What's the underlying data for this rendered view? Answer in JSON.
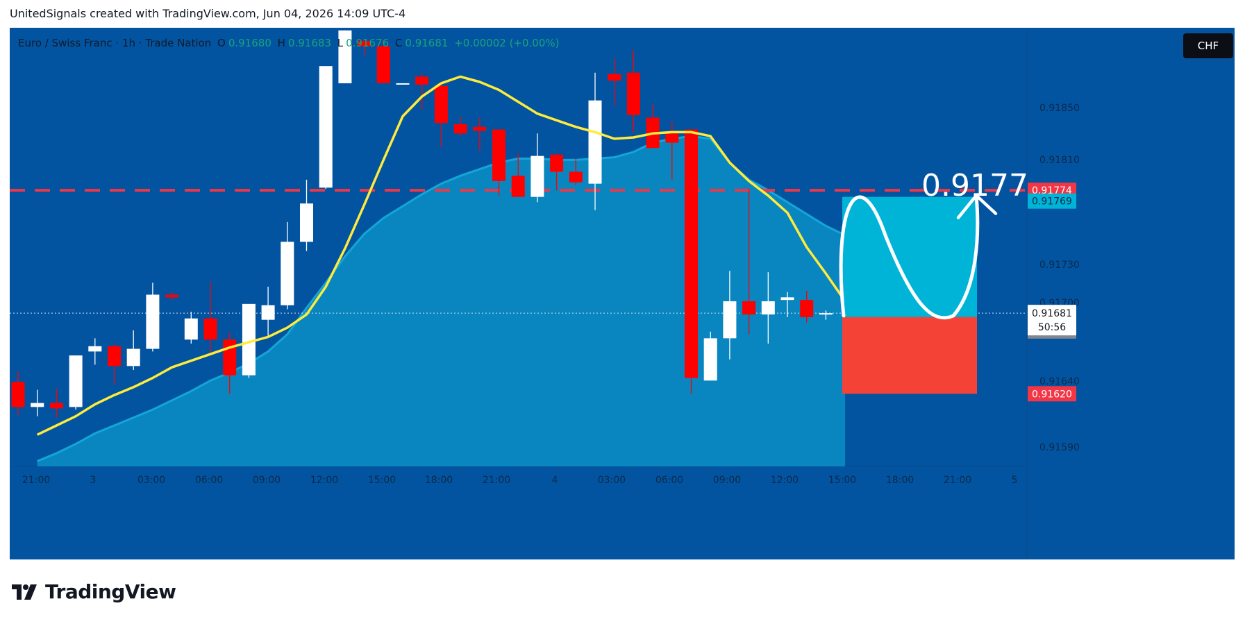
{
  "caption": "UnitedSignals created with TradingView.com, Jun 04, 2026 14:09 UTC-4",
  "symbol": {
    "name": "Euro / Swiss Franc · 1h · Trade Nation",
    "o_label": "O",
    "o_value": "0.91680",
    "h_label": "H",
    "h_value": "0.91683",
    "l_label": "L",
    "l_value": "0.91676",
    "c_label": "C",
    "c_value": "0.91681",
    "change": "+0.00002 (+0.00%)"
  },
  "currency": "CHF",
  "annotation_price": "0.9177",
  "countdown": "50:56",
  "footer_brand": "TradingView",
  "colors": {
    "background": "#0354a0",
    "bull": "#ffffff",
    "bear": "#ff0000",
    "ma_fast": "#ffeb3b",
    "ma_slow_fill": "#0a8fc4",
    "resistance": "#f23645",
    "target_zone": "#00b4d8",
    "stop_zone": "#f44336"
  },
  "chart_data": {
    "type": "candlestick",
    "ylim": [
      0.91565,
      0.91897
    ],
    "y_ticks": [
      "0.91850",
      "0.91810",
      "0.91730",
      "0.91700",
      "0.91640",
      "0.91590"
    ],
    "x_ticks": [
      "21:00",
      "3",
      "03:00",
      "06:00",
      "09:00",
      "12:00",
      "15:00",
      "18:00",
      "21:00",
      "4",
      "03:00",
      "06:00",
      "09:00",
      "12:00",
      "15:00",
      "18:00",
      "21:00",
      "5"
    ],
    "candles": [
      {
        "o": 0.91629,
        "h": 0.91637,
        "l": 0.91604,
        "c": 0.9161
      },
      {
        "o": 0.9161,
        "h": 0.91623,
        "l": 0.91603,
        "c": 0.91613
      },
      {
        "o": 0.91613,
        "h": 0.91624,
        "l": 0.91602,
        "c": 0.91609
      },
      {
        "o": 0.9161,
        "h": 0.91649,
        "l": 0.91608,
        "c": 0.91649
      },
      {
        "o": 0.91652,
        "h": 0.91662,
        "l": 0.91642,
        "c": 0.91656
      },
      {
        "o": 0.91656,
        "h": 0.91658,
        "l": 0.91627,
        "c": 0.91641
      },
      {
        "o": 0.91641,
        "h": 0.91668,
        "l": 0.91638,
        "c": 0.91654
      },
      {
        "o": 0.91654,
        "h": 0.91704,
        "l": 0.91652,
        "c": 0.91695
      },
      {
        "o": 0.91695,
        "h": 0.91697,
        "l": 0.91691,
        "c": 0.91693
      },
      {
        "o": 0.91661,
        "h": 0.91682,
        "l": 0.91658,
        "c": 0.91677
      },
      {
        "o": 0.91677,
        "h": 0.91705,
        "l": 0.91651,
        "c": 0.91661
      },
      {
        "o": 0.91661,
        "h": 0.91666,
        "l": 0.9162,
        "c": 0.91634
      },
      {
        "o": 0.91634,
        "h": 0.91686,
        "l": 0.91632,
        "c": 0.91688
      },
      {
        "o": 0.91676,
        "h": 0.91701,
        "l": 0.91664,
        "c": 0.91687
      },
      {
        "o": 0.91687,
        "h": 0.9175,
        "l": 0.91684,
        "c": 0.91735
      },
      {
        "o": 0.91735,
        "h": 0.91782,
        "l": 0.91728,
        "c": 0.91764
      },
      {
        "o": 0.91776,
        "h": 0.91868,
        "l": 0.91775,
        "c": 0.91868
      },
      {
        "o": 0.91855,
        "h": 0.91895,
        "l": 0.91855,
        "c": 0.91895
      },
      {
        "o": 0.91887,
        "h": 0.91887,
        "l": 0.91876,
        "c": 0.91883
      },
      {
        "o": 0.91883,
        "h": 0.91888,
        "l": 0.91855,
        "c": 0.91855
      },
      {
        "o": 0.91855,
        "h": 0.91855,
        "l": 0.91855,
        "c": 0.91855
      },
      {
        "o": 0.9186,
        "h": 0.91863,
        "l": 0.91835,
        "c": 0.91854
      },
      {
        "o": 0.91853,
        "h": 0.91856,
        "l": 0.91807,
        "c": 0.91825
      },
      {
        "o": 0.91824,
        "h": 0.9183,
        "l": 0.91815,
        "c": 0.91817
      },
      {
        "o": 0.91822,
        "h": 0.91829,
        "l": 0.91804,
        "c": 0.91819
      },
      {
        "o": 0.9182,
        "h": 0.9182,
        "l": 0.9177,
        "c": 0.91781
      },
      {
        "o": 0.91785,
        "h": 0.91802,
        "l": 0.9177,
        "c": 0.91769
      },
      {
        "o": 0.91769,
        "h": 0.91817,
        "l": 0.91765,
        "c": 0.918
      },
      {
        "o": 0.91801,
        "h": 0.91802,
        "l": 0.91774,
        "c": 0.91788
      },
      {
        "o": 0.91788,
        "h": 0.91798,
        "l": 0.91778,
        "c": 0.9178
      },
      {
        "o": 0.91779,
        "h": 0.91863,
        "l": 0.91759,
        "c": 0.91842
      },
      {
        "o": 0.91862,
        "h": 0.91874,
        "l": 0.91838,
        "c": 0.91857
      },
      {
        "o": 0.91863,
        "h": 0.9188,
        "l": 0.91818,
        "c": 0.91831
      },
      {
        "o": 0.91829,
        "h": 0.91839,
        "l": 0.91808,
        "c": 0.91806
      },
      {
        "o": 0.91817,
        "h": 0.91826,
        "l": 0.91782,
        "c": 0.9181
      },
      {
        "o": 0.9182,
        "h": 0.9182,
        "l": 0.9162,
        "c": 0.91632
      },
      {
        "o": 0.9163,
        "h": 0.91667,
        "l": 0.9163,
        "c": 0.91662
      },
      {
        "o": 0.91662,
        "h": 0.91713,
        "l": 0.91646,
        "c": 0.9169
      },
      {
        "o": 0.9169,
        "h": 0.91775,
        "l": 0.91665,
        "c": 0.9168
      },
      {
        "o": 0.9168,
        "h": 0.91712,
        "l": 0.91658,
        "c": 0.9169
      },
      {
        "o": 0.91691,
        "h": 0.91697,
        "l": 0.91678,
        "c": 0.91693
      },
      {
        "o": 0.91691,
        "h": 0.91698,
        "l": 0.91674,
        "c": 0.91678
      },
      {
        "o": 0.9168,
        "h": 0.91683,
        "l": 0.91676,
        "c": 0.91681
      }
    ],
    "ma_fast": [
      0.91589,
      0.91596,
      0.91603,
      0.91612,
      0.91619,
      0.91625,
      0.91632,
      0.9164,
      0.91645,
      0.9165,
      0.91655,
      0.91659,
      0.91663,
      0.9167,
      0.9168,
      0.91701,
      0.9173,
      0.91763,
      0.91797,
      0.9183,
      0.91845,
      0.91855,
      0.9186,
      0.91856,
      0.9185,
      0.91841,
      0.91832,
      0.91827,
      0.91822,
      0.91818,
      0.91813,
      0.91814,
      0.91817,
      0.91818,
      0.91818,
      0.91815,
      0.91795,
      0.91781,
      0.9177,
      0.91757,
      0.91731,
      0.91711,
      0.9169
    ],
    "ma_slow": [
      0.91569,
      0.91575,
      0.91582,
      0.9159,
      0.91596,
      0.91602,
      0.91608,
      0.91615,
      0.91622,
      0.9163,
      0.91636,
      0.91643,
      0.91652,
      0.91665,
      0.91685,
      0.91704,
      0.91724,
      0.91741,
      0.91753,
      0.91762,
      0.91771,
      0.91779,
      0.91785,
      0.9179,
      0.91795,
      0.91798,
      0.91798,
      0.91797,
      0.91797,
      0.91798,
      0.91799,
      0.91803,
      0.9181,
      0.91813,
      0.91815,
      0.91813,
      0.91795,
      0.91782,
      0.91774,
      0.91765,
      0.91756,
      0.91747,
      0.9174
    ],
    "resistance_level": 0.91774,
    "current_price": 0.91681,
    "price_labels": [
      "0.91774",
      "0.91769",
      "0.91681",
      "0.91678",
      "0.91620"
    ],
    "target_zone": [
      0.91678,
      0.91769
    ],
    "stop_zone": [
      0.9162,
      0.91678
    ]
  }
}
